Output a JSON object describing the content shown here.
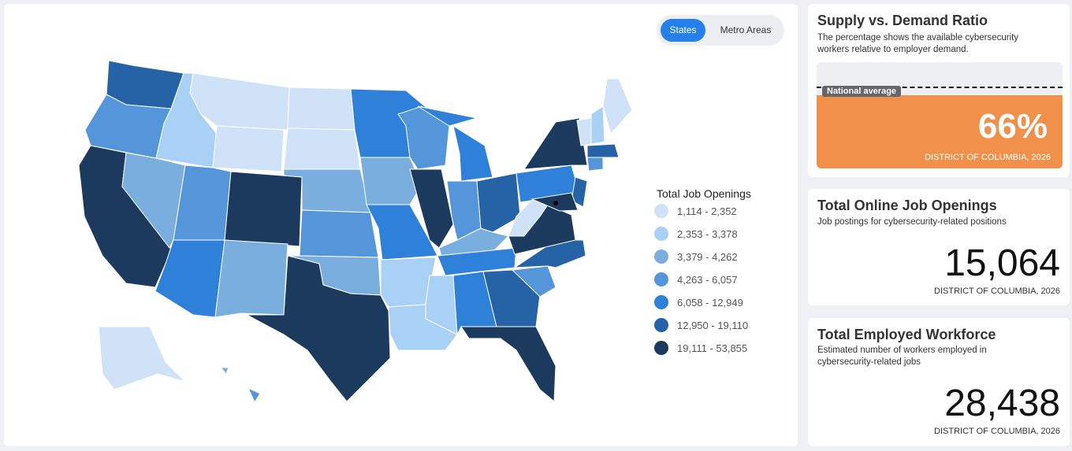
{
  "toggle": {
    "options": [
      "States",
      "Metro Areas"
    ],
    "active": 0
  },
  "legend": {
    "title": "Total Job Openings",
    "items": [
      {
        "label": "1,114 - 2,352",
        "color": "#cfe2f7"
      },
      {
        "label": "2,353 - 3,378",
        "color": "#a9d0f5"
      },
      {
        "label": "3,379 - 4,262",
        "color": "#7aaede"
      },
      {
        "label": "4,263 - 6,057",
        "color": "#5596da"
      },
      {
        "label": "6,058 - 12,949",
        "color": "#2f80d8"
      },
      {
        "label": "12,950 - 19,110",
        "color": "#2563a6"
      },
      {
        "label": "19,111 - 53,855",
        "color": "#1b3a5e"
      }
    ]
  },
  "cards": [
    {
      "title": "Supply vs. Demand Ratio",
      "description": "The percentage shows the available cybersecurity workers relative to employer demand.",
      "marker": "National average",
      "value": "66%",
      "caption": "DISTRICT OF COLUMBIA, 2026"
    },
    {
      "title": "Total Online Job Openings",
      "description": "Job postings for cybersecurity-related positions",
      "value": "15,064",
      "caption": "DISTRICT OF COLUMBIA, 2026"
    },
    {
      "title": "Total Employed Workforce",
      "description": "Estimated number of workers employed in cybersecurity-related jobs",
      "value": "28,438",
      "caption": "DISTRICT OF COLUMBIA, 2026"
    }
  ]
}
